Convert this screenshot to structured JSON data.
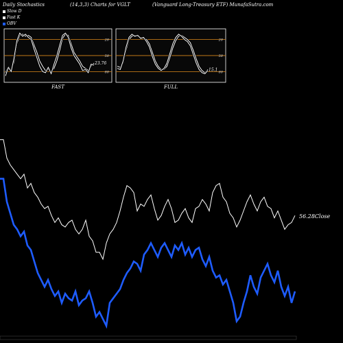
{
  "header": {
    "left": "Daily Stochastics",
    "center": "(14,3,3) Charts for VGLT",
    "right": "(Vanguard Long-Treasury ETF) MunafaSutra.com"
  },
  "legend": [
    {
      "label": "Slow  D",
      "color": "#ffffff"
    },
    {
      "label": "Fast K",
      "color": "#ffffff"
    },
    {
      "label": "OBV",
      "color": "#1e5cff"
    }
  ],
  "panels": {
    "fast": {
      "caption": "FAST",
      "value_label": "23.76",
      "ticks": [
        "80",
        "50",
        "20"
      ]
    },
    "full": {
      "caption": "FULL",
      "value_label": "15.1",
      "ticks": [
        "80",
        "50",
        "20"
      ]
    }
  },
  "close_label": "56.28Close",
  "chart_data": [
    {
      "type": "line",
      "title": "FAST",
      "ylim": [
        0,
        100
      ],
      "reference_lines": [
        20,
        50,
        80
      ],
      "series": [
        {
          "values": [
            18,
            30,
            22,
            38,
            72,
            88,
            90,
            86,
            88,
            84,
            70,
            56,
            40,
            30,
            22,
            24,
            20,
            26,
            40,
            60,
            82,
            90,
            88,
            72,
            56,
            48,
            40,
            30,
            26,
            22,
            30,
            36
          ]
        },
        {
          "values": [
            12,
            28,
            20,
            46,
            78,
            92,
            86,
            90,
            84,
            80,
            62,
            46,
            30,
            20,
            18,
            28,
            16,
            34,
            50,
            70,
            88,
            92,
            84,
            64,
            50,
            42,
            34,
            22,
            24,
            18,
            34,
            32
          ]
        }
      ]
    },
    {
      "type": "line",
      "title": "FULL",
      "ylim": [
        0,
        100
      ],
      "reference_lines": [
        20,
        50,
        80
      ],
      "series": [
        {
          "values": [
            30,
            28,
            36,
            60,
            80,
            86,
            88,
            86,
            84,
            82,
            80,
            72,
            56,
            40,
            30,
            24,
            24,
            30,
            46,
            64,
            78,
            86,
            88,
            84,
            80,
            74,
            60,
            44,
            30,
            22,
            18,
            24
          ]
        },
        {
          "values": [
            26,
            24,
            40,
            66,
            84,
            90,
            86,
            88,
            82,
            84,
            76,
            66,
            48,
            34,
            26,
            22,
            26,
            36,
            54,
            72,
            84,
            90,
            86,
            80,
            76,
            68,
            52,
            36,
            24,
            18,
            16,
            22
          ]
        }
      ]
    },
    {
      "type": "line",
      "title": "",
      "series": [
        {
          "name": "OBV",
          "color": "#1e5cff",
          "values": [
            64,
            64,
            54,
            49,
            44,
            42,
            39,
            41,
            35,
            33,
            28,
            23,
            20,
            17,
            20,
            16,
            13,
            15,
            10,
            14,
            12,
            11,
            15,
            9,
            11,
            12,
            15,
            10,
            4,
            6,
            3,
            0,
            10,
            12,
            14,
            16,
            20,
            23,
            25,
            28,
            27,
            24,
            31,
            33,
            36,
            33,
            30,
            34,
            36,
            33,
            30,
            35,
            33,
            36,
            31,
            34,
            30,
            33,
            34,
            29,
            26,
            30,
            24,
            21,
            22,
            18,
            20,
            15,
            10,
            2,
            4,
            10,
            15,
            22,
            17,
            14,
            21,
            24,
            27,
            22,
            19,
            24,
            17,
            13,
            17,
            10,
            15
          ]
        },
        {
          "name": "Price",
          "color": "#ffffff",
          "values": [
            81,
            81,
            73,
            70,
            68,
            66,
            64,
            66,
            60,
            62,
            58,
            56,
            53,
            51,
            52,
            48,
            45,
            47,
            44,
            43,
            45,
            46,
            42,
            40,
            42,
            46,
            39,
            37,
            32,
            32,
            29,
            36,
            40,
            42,
            45,
            50,
            56,
            61,
            60,
            58,
            50,
            53,
            52,
            55,
            57,
            51,
            46,
            48,
            52,
            55,
            51,
            45,
            46,
            49,
            51,
            47,
            45,
            51,
            52,
            55,
            53,
            50,
            58,
            61,
            62,
            56,
            54,
            49,
            47,
            43,
            46,
            50,
            54,
            57,
            53,
            50,
            54,
            56,
            52,
            51,
            47,
            50,
            46,
            42,
            44,
            45,
            48
          ]
        }
      ]
    }
  ]
}
